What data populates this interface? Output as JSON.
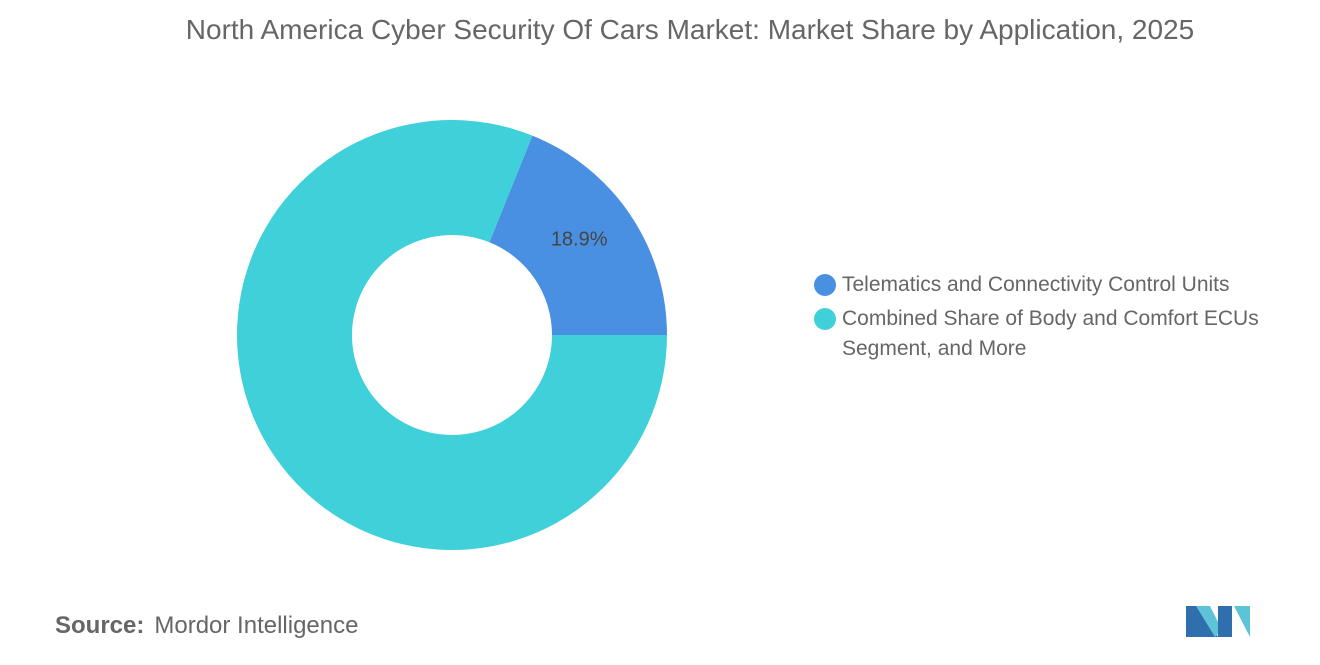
{
  "chart_data": {
    "type": "donut",
    "title": "North America Cyber Security Of Cars Market: Market Share by Application, 2025",
    "categories": [
      "Telematics and Connectivity Control Units",
      "Combined Share of Body and Comfort ECUs Segment, and More"
    ],
    "values": [
      18.9,
      81.1
    ],
    "value_labels": [
      "18.9%",
      null
    ],
    "colors": [
      "#4a90e2",
      "#3fd0da"
    ],
    "legend": "right",
    "source_label": "Source:",
    "source": "Mordor Intelligence"
  }
}
